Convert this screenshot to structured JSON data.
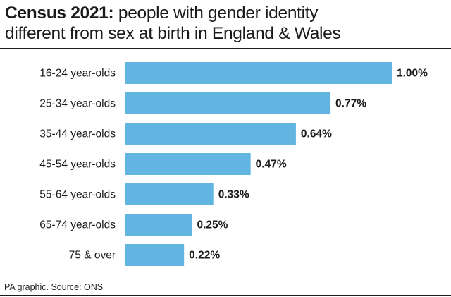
{
  "title": {
    "bold": "Census 2021:",
    "rest_line1": " people with gender identity",
    "line2": "different from sex at birth in England & Wales"
  },
  "footer": "PA graphic. Source: ONS",
  "colors": {
    "bar": "#62b5e0",
    "text": "#1a1a1a",
    "rule": "#1a1a1a"
  },
  "chart_data": {
    "type": "bar",
    "orientation": "horizontal",
    "categories": [
      "16-24 year-olds",
      "25-34 year-olds",
      "35-44 year-olds",
      "45-54 year-olds",
      "55-64 year-olds",
      "65-74 year-olds",
      "75 & over"
    ],
    "values": [
      1.0,
      0.77,
      0.64,
      0.47,
      0.33,
      0.25,
      0.22
    ],
    "value_labels": [
      "1.00%",
      "0.77%",
      "0.64%",
      "0.47%",
      "0.33%",
      "0.25%",
      "0.22%"
    ],
    "xlim": [
      0,
      1.0
    ],
    "grid": false,
    "legend": "none"
  }
}
